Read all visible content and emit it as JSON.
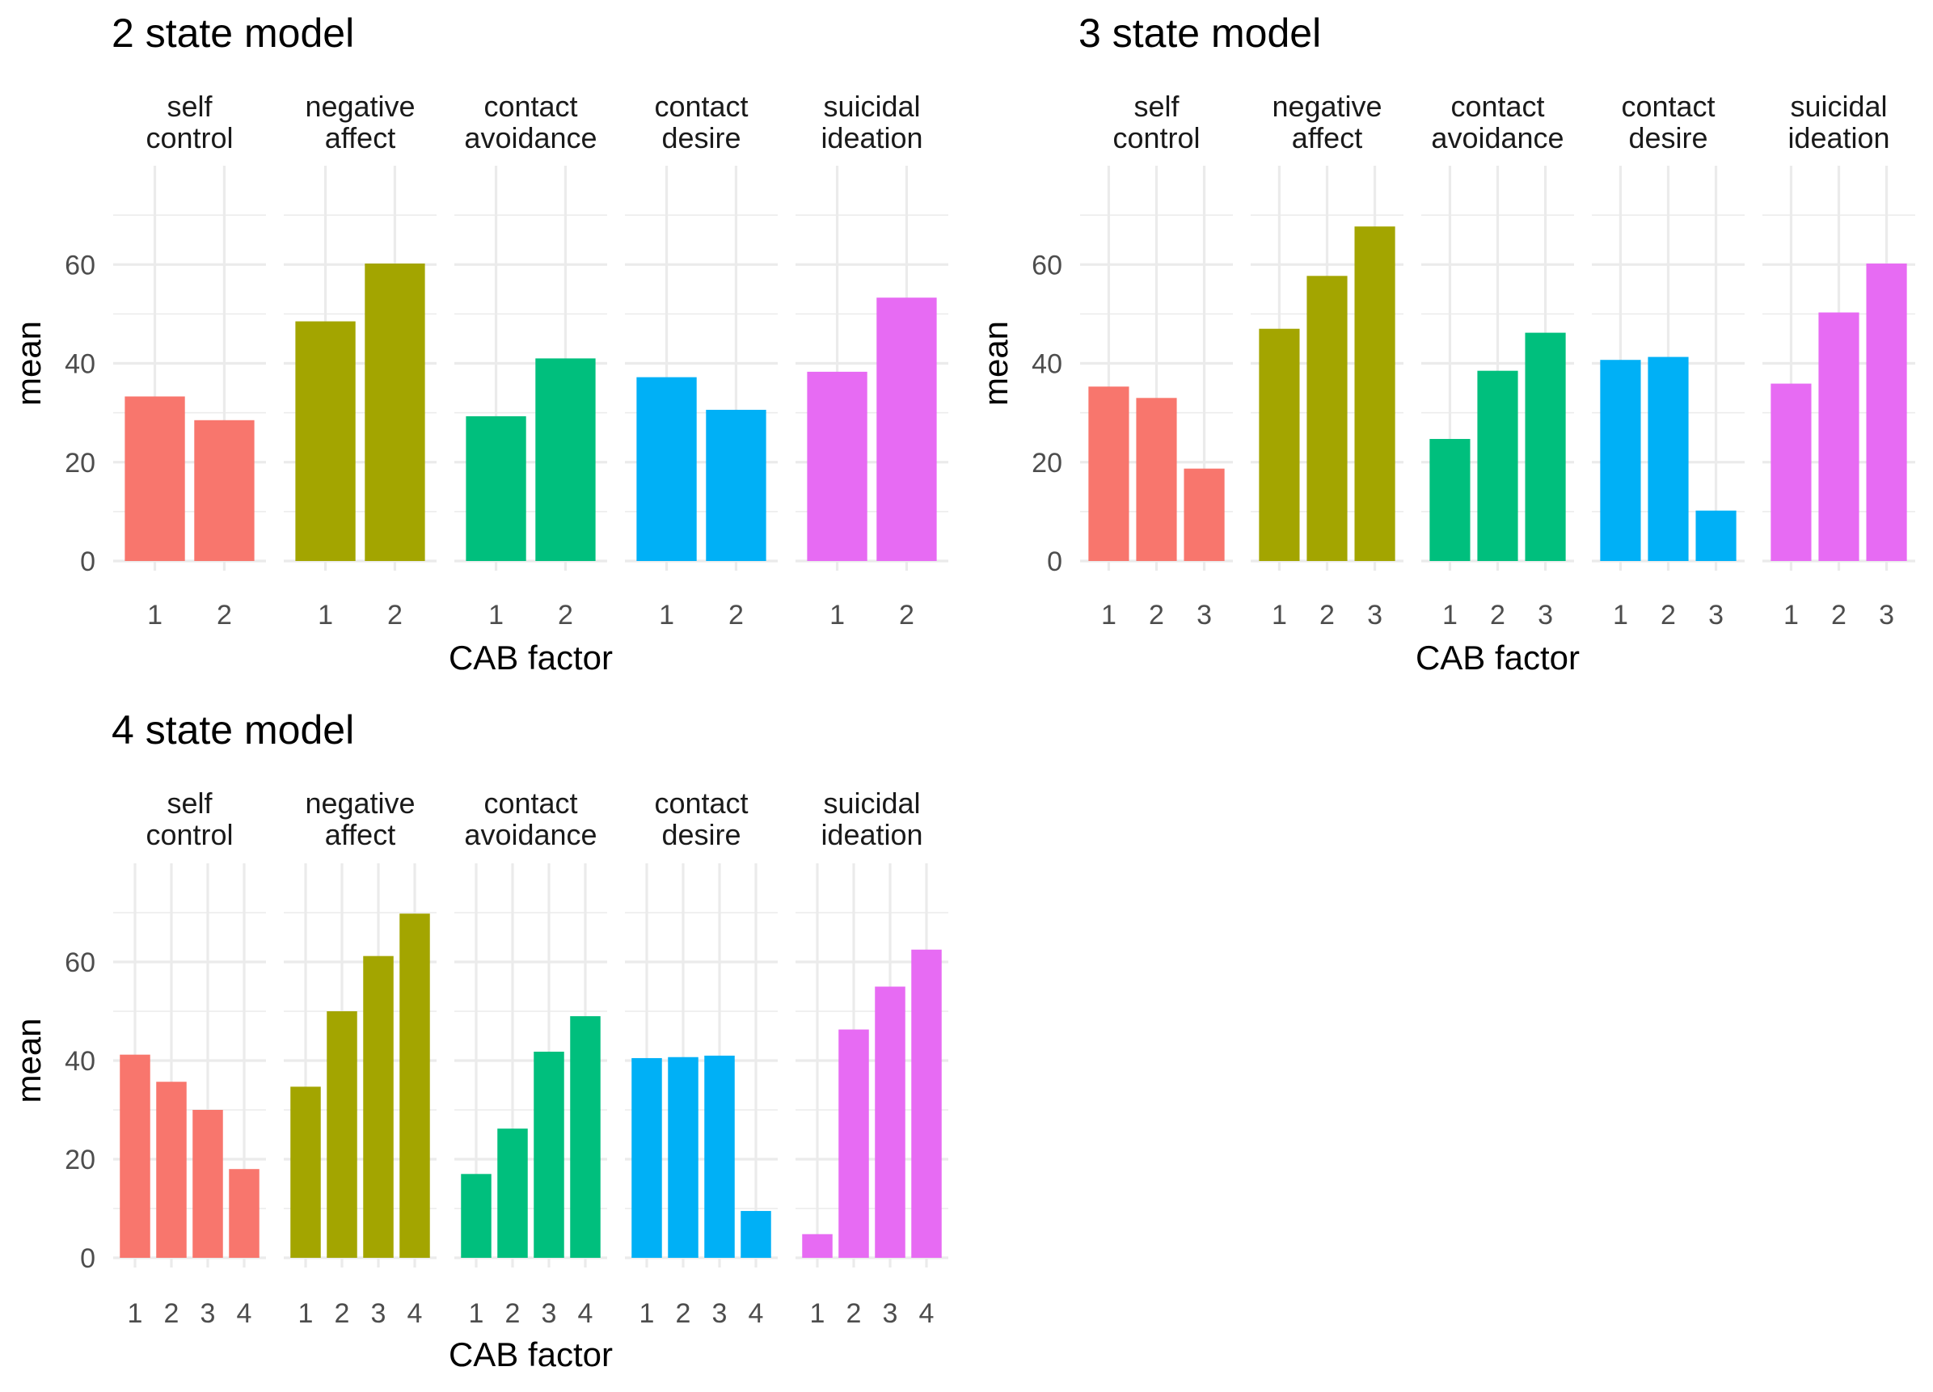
{
  "chart_data": [
    {
      "type": "bar",
      "title": "2 state model",
      "xlabel": "CAB factor",
      "ylabel": "mean",
      "ylim": [
        0,
        80
      ],
      "yticks": [
        "0",
        "20",
        "40",
        "60"
      ],
      "categories": [
        "1",
        "2"
      ],
      "grid": true,
      "legend": "none",
      "facets": [
        {
          "label": [
            "self",
            "control"
          ],
          "color": "#F8766D",
          "values": [
            33.3,
            28.5
          ]
        },
        {
          "label": [
            "negative",
            "affect"
          ],
          "color": "#A3A500",
          "values": [
            48.5,
            60.2
          ]
        },
        {
          "label": [
            "contact",
            "avoidance"
          ],
          "color": "#00BF7D",
          "values": [
            29.3,
            41.0
          ]
        },
        {
          "label": [
            "contact",
            "desire"
          ],
          "color": "#00B0F6",
          "values": [
            37.2,
            30.6
          ]
        },
        {
          "label": [
            "suicidal",
            "ideation"
          ],
          "color": "#E76BF3",
          "values": [
            38.3,
            53.3
          ]
        }
      ]
    },
    {
      "type": "bar",
      "title": "3 state model",
      "xlabel": "CAB factor",
      "ylabel": "mean",
      "ylim": [
        0,
        80
      ],
      "yticks": [
        "0",
        "20",
        "40",
        "60"
      ],
      "categories": [
        "1",
        "2",
        "3"
      ],
      "grid": true,
      "legend": "none",
      "facets": [
        {
          "label": [
            "self",
            "control"
          ],
          "color": "#F8766D",
          "values": [
            35.3,
            33.0,
            18.7
          ]
        },
        {
          "label": [
            "negative",
            "affect"
          ],
          "color": "#A3A500",
          "values": [
            47.0,
            57.7,
            67.7
          ]
        },
        {
          "label": [
            "contact",
            "avoidance"
          ],
          "color": "#00BF7D",
          "values": [
            24.7,
            38.5,
            46.2
          ]
        },
        {
          "label": [
            "contact",
            "desire"
          ],
          "color": "#00B0F6",
          "values": [
            40.7,
            41.3,
            10.2
          ]
        },
        {
          "label": [
            "suicidal",
            "ideation"
          ],
          "color": "#E76BF3",
          "values": [
            35.9,
            50.3,
            60.2
          ]
        }
      ]
    },
    {
      "type": "bar",
      "title": "4 state model",
      "xlabel": "CAB factor",
      "ylabel": "mean",
      "ylim": [
        0,
        80
      ],
      "yticks": [
        "0",
        "20",
        "40",
        "60"
      ],
      "categories": [
        "1",
        "2",
        "3",
        "4"
      ],
      "grid": true,
      "legend": "none",
      "facets": [
        {
          "label": [
            "self",
            "control"
          ],
          "color": "#F8766D",
          "values": [
            41.2,
            35.7,
            30.0,
            18.0
          ]
        },
        {
          "label": [
            "negative",
            "affect"
          ],
          "color": "#A3A500",
          "values": [
            34.7,
            50.0,
            61.2,
            69.8
          ]
        },
        {
          "label": [
            "contact",
            "avoidance"
          ],
          "color": "#00BF7D",
          "values": [
            17.0,
            26.2,
            41.8,
            49.0
          ]
        },
        {
          "label": [
            "contact",
            "desire"
          ],
          "color": "#00B0F6",
          "values": [
            40.5,
            40.7,
            41.0,
            9.5
          ]
        },
        {
          "label": [
            "suicidal",
            "ideation"
          ],
          "color": "#E76BF3",
          "values": [
            4.8,
            46.3,
            55.0,
            62.5
          ]
        }
      ]
    }
  ]
}
